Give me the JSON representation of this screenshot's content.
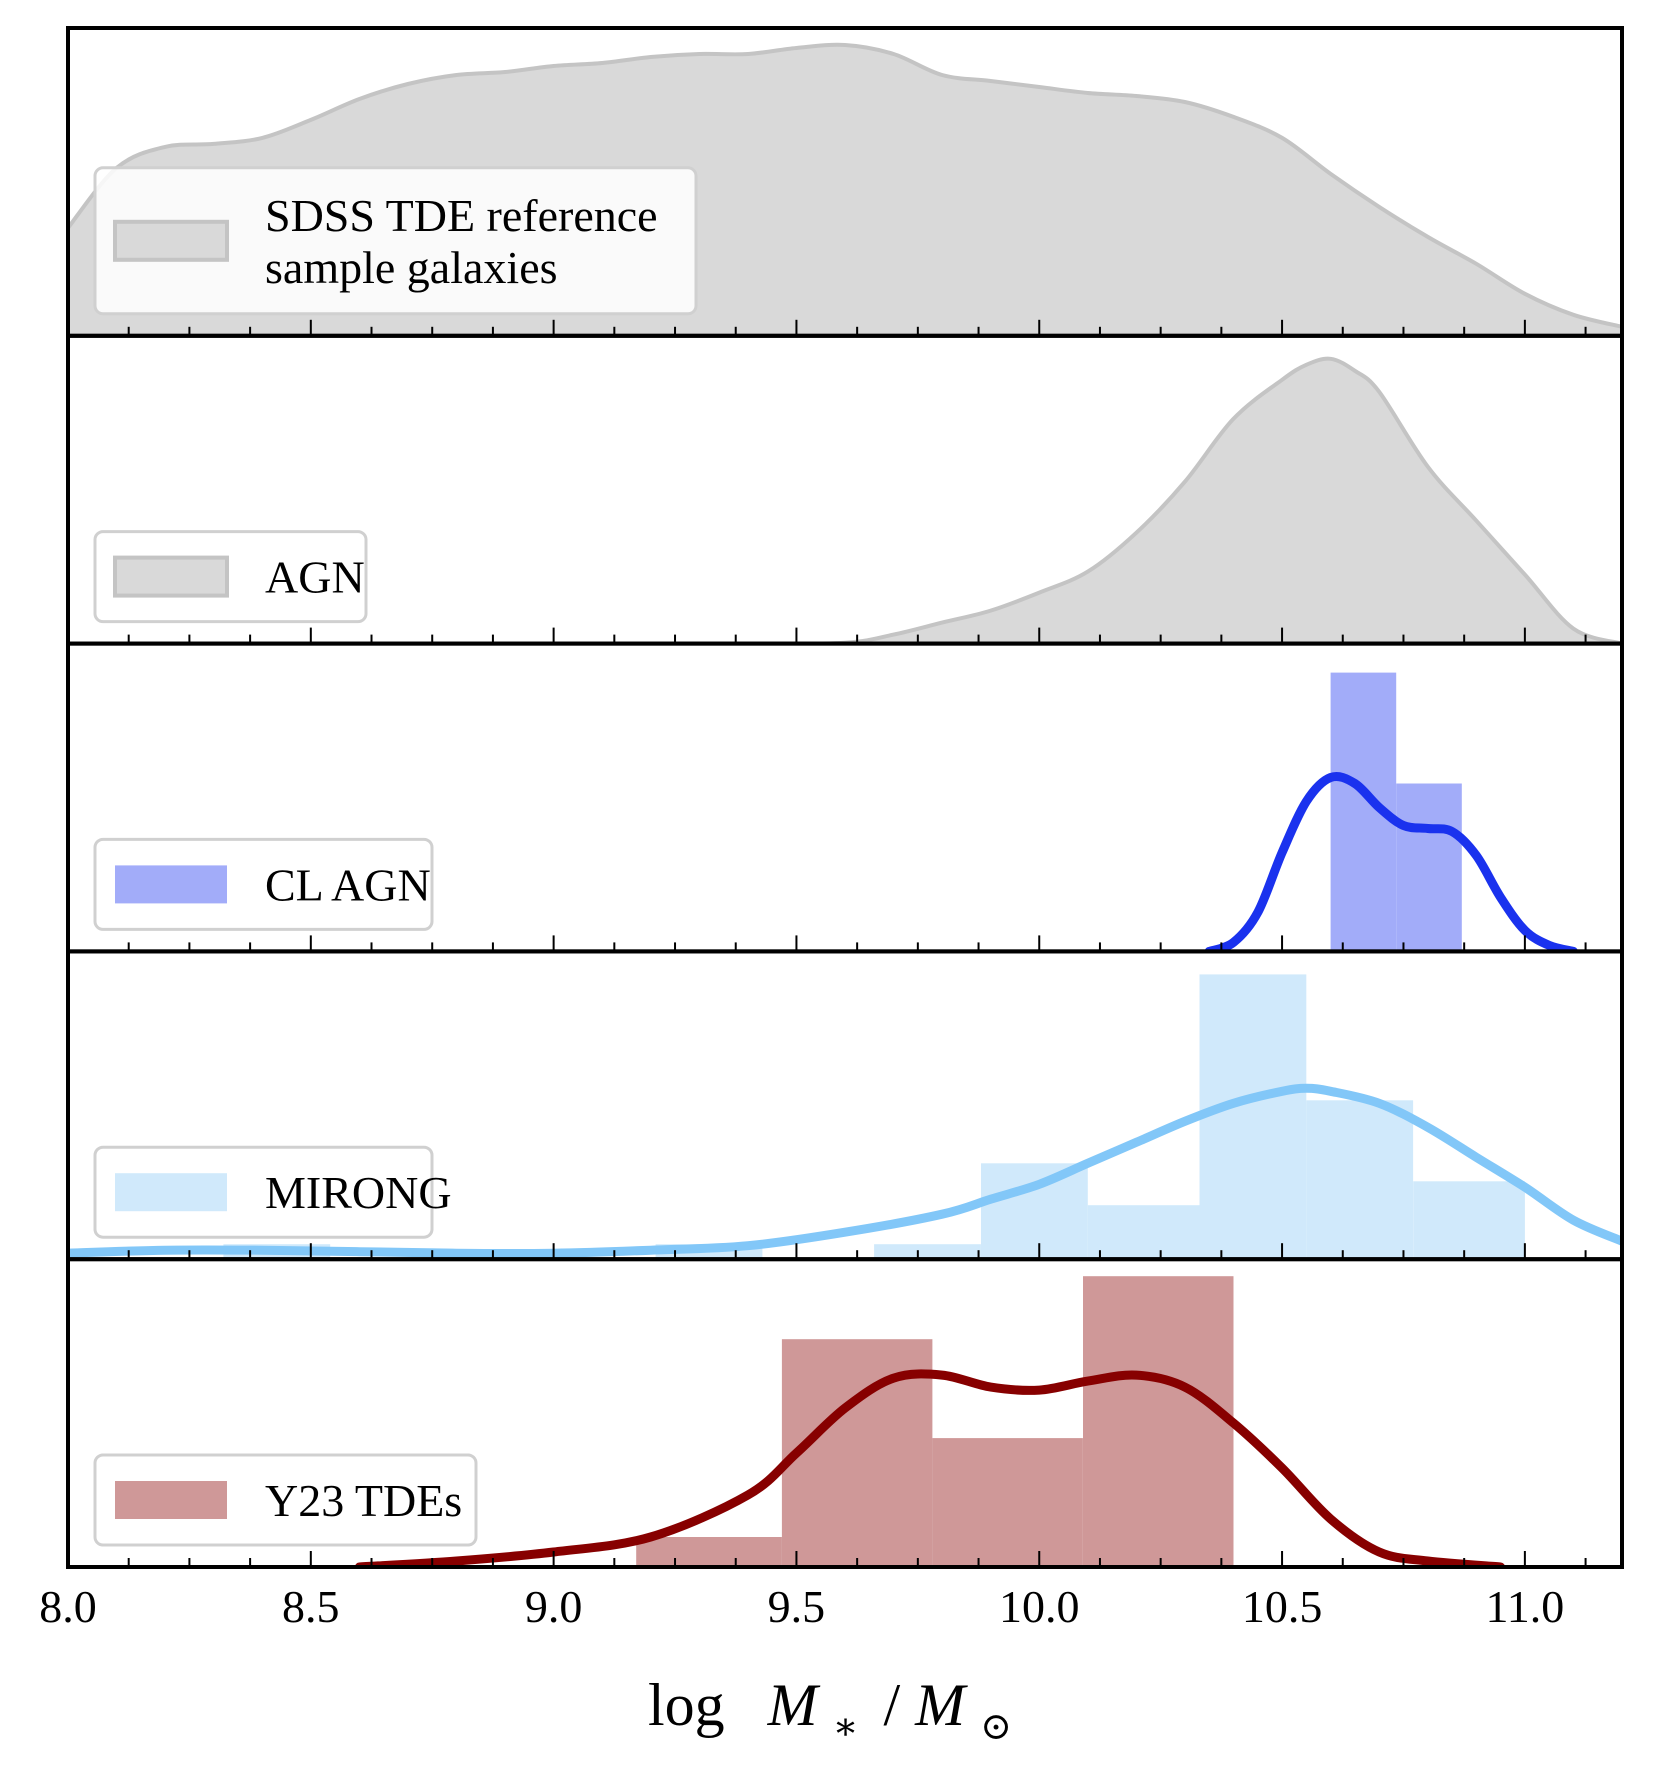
{
  "chart_data": {
    "type": "stacked-histogram-kde",
    "x_range": [
      8.0,
      11.2
    ],
    "x_ticks": [
      "8.0",
      "8.5",
      "9.0",
      "9.5",
      "10.0",
      "10.5",
      "11.0"
    ],
    "x_tick_values": [
      8.0,
      8.5,
      9.0,
      9.5,
      10.0,
      10.5,
      11.0
    ],
    "minor_tick_step": 0.125,
    "xlabel": {
      "log": "log",
      "M": "M",
      "star": "∗",
      "slash": "/",
      "sun": "⊙"
    },
    "y_axis_visible": false,
    "panels": [
      {
        "name": "SDSS TDE reference sample galaxies",
        "legend": [
          "SDSS TDE reference",
          " sample galaxies"
        ],
        "legend_position": "left",
        "color": "#d9d9d9",
        "line_color": "#c4c4c4",
        "y_max": 1.0,
        "hist_bins": [],
        "kde": {
          "x": [
            8.0,
            8.1,
            8.2,
            8.3,
            8.4,
            8.5,
            8.6,
            8.7,
            8.8,
            8.9,
            9.0,
            9.1,
            9.2,
            9.3,
            9.4,
            9.5,
            9.6,
            9.7,
            9.8,
            9.9,
            10.0,
            10.1,
            10.2,
            10.3,
            10.4,
            10.5,
            10.6,
            10.7,
            10.8,
            10.9,
            11.0,
            11.1,
            11.2
          ],
          "y": [
            0.36,
            0.56,
            0.63,
            0.64,
            0.66,
            0.72,
            0.79,
            0.84,
            0.87,
            0.88,
            0.9,
            0.91,
            0.93,
            0.94,
            0.94,
            0.96,
            0.97,
            0.94,
            0.87,
            0.85,
            0.83,
            0.81,
            0.8,
            0.78,
            0.73,
            0.66,
            0.54,
            0.43,
            0.33,
            0.24,
            0.14,
            0.07,
            0.03
          ]
        }
      },
      {
        "name": "AGN",
        "legend": [
          "AGN"
        ],
        "legend_position": "left",
        "color": "#d9d9d9",
        "line_color": "#c4c4c4",
        "y_max": 1.0,
        "hist_bins": [],
        "kde": {
          "x": [
            8.8,
            9.0,
            9.2,
            9.4,
            9.6,
            9.7,
            9.8,
            9.9,
            10.0,
            10.1,
            10.2,
            10.3,
            10.4,
            10.5,
            10.55,
            10.6,
            10.65,
            10.7,
            10.8,
            10.9,
            11.0,
            11.1,
            11.2
          ],
          "y": [
            0.0,
            0.0,
            0.0,
            0.0,
            0.003,
            0.03,
            0.07,
            0.11,
            0.17,
            0.24,
            0.37,
            0.54,
            0.75,
            0.88,
            0.93,
            0.95,
            0.91,
            0.84,
            0.59,
            0.41,
            0.23,
            0.05,
            0.0
          ]
        }
      },
      {
        "name": "CL AGN",
        "legend": [
          "CL AGN"
        ],
        "legend_position": "left",
        "color": "#a2acf9",
        "line_color": "#1a32ee",
        "y_max": 1.0,
        "hist_bins": [
          {
            "x0": 10.6,
            "x1": 10.735,
            "height": 0.93
          },
          {
            "x0": 10.735,
            "x1": 10.87,
            "height": 0.56
          }
        ],
        "kde": {
          "x": [
            10.35,
            10.4,
            10.45,
            10.5,
            10.55,
            10.6,
            10.65,
            10.7,
            10.75,
            10.8,
            10.85,
            10.9,
            10.95,
            11.0,
            11.05,
            11.1
          ],
          "y": [
            0.0,
            0.03,
            0.13,
            0.33,
            0.5,
            0.58,
            0.56,
            0.48,
            0.42,
            0.41,
            0.4,
            0.32,
            0.18,
            0.07,
            0.02,
            0.0
          ]
        }
      },
      {
        "name": "MIRONG",
        "legend": [
          "MIRONG"
        ],
        "legend_position": "left",
        "color": "#d0e9fb",
        "line_color": "#82c7f8",
        "y_max": 1.0,
        "hist_bins": [
          {
            "x0": 8.32,
            "x1": 8.54,
            "height": 0.05
          },
          {
            "x0": 9.21,
            "x1": 9.43,
            "height": 0.05
          },
          {
            "x0": 9.66,
            "x1": 9.88,
            "height": 0.05
          },
          {
            "x0": 9.88,
            "x1": 10.1,
            "height": 0.32
          },
          {
            "x0": 10.1,
            "x1": 10.33,
            "height": 0.18
          },
          {
            "x0": 10.33,
            "x1": 10.55,
            "height": 0.95
          },
          {
            "x0": 10.55,
            "x1": 10.77,
            "height": 0.53
          },
          {
            "x0": 10.77,
            "x1": 11.0,
            "height": 0.26
          }
        ],
        "kde": {
          "x": [
            8.0,
            8.2,
            8.4,
            8.6,
            8.8,
            9.0,
            9.2,
            9.4,
            9.6,
            9.8,
            9.9,
            10.0,
            10.1,
            10.2,
            10.3,
            10.4,
            10.5,
            10.55,
            10.6,
            10.7,
            10.8,
            10.9,
            11.0,
            11.1,
            11.2
          ],
          "y": [
            0.02,
            0.03,
            0.03,
            0.025,
            0.02,
            0.02,
            0.03,
            0.045,
            0.09,
            0.15,
            0.2,
            0.25,
            0.32,
            0.39,
            0.46,
            0.52,
            0.56,
            0.57,
            0.56,
            0.52,
            0.44,
            0.34,
            0.24,
            0.13,
            0.06
          ]
        }
      },
      {
        "name": "Y23 TDEs",
        "legend": [
          "Y23 TDEs"
        ],
        "legend_position": "left",
        "color": "#cf9898",
        "line_color": "#870000",
        "y_max": 1.0,
        "hist_bins": [
          {
            "x0": 9.17,
            "x1": 9.47,
            "height": 0.1
          },
          {
            "x0": 9.47,
            "x1": 9.78,
            "height": 0.76
          },
          {
            "x0": 9.78,
            "x1": 10.09,
            "height": 0.43
          },
          {
            "x0": 10.09,
            "x1": 10.4,
            "height": 0.97
          }
        ],
        "kde": {
          "x": [
            8.6,
            8.8,
            9.0,
            9.2,
            9.4,
            9.5,
            9.6,
            9.7,
            9.8,
            9.9,
            10.0,
            10.1,
            10.2,
            10.3,
            10.4,
            10.5,
            10.6,
            10.7,
            10.8,
            10.95
          ],
          "y": [
            0.0,
            0.02,
            0.05,
            0.1,
            0.24,
            0.38,
            0.53,
            0.63,
            0.64,
            0.6,
            0.59,
            0.62,
            0.64,
            0.6,
            0.48,
            0.33,
            0.16,
            0.05,
            0.02,
            0.0
          ]
        }
      }
    ]
  }
}
